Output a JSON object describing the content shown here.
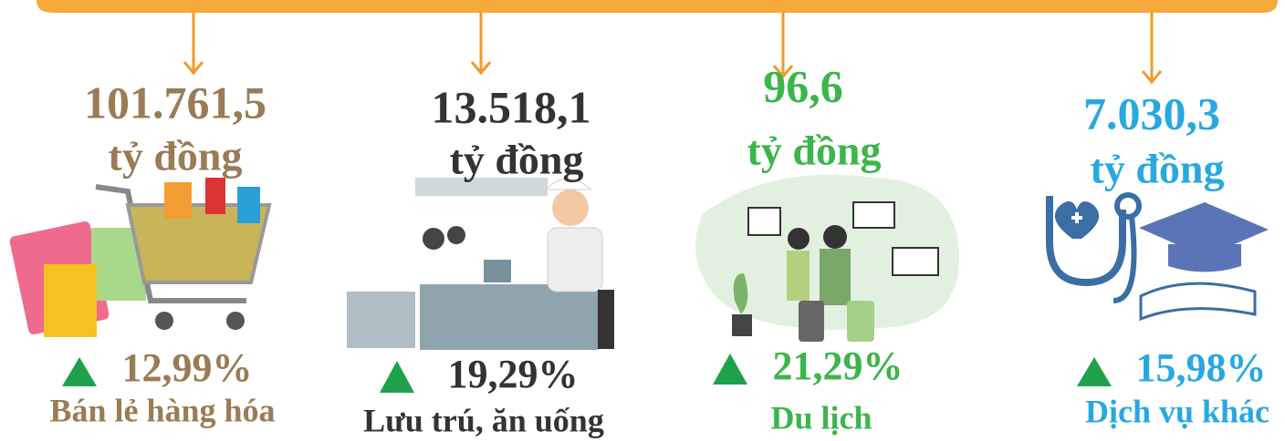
{
  "items": [
    {
      "value": "101.761,5",
      "unit": "tỷ đồng",
      "growth": "12,99%",
      "label": "Bán lẻ hàng hóa"
    },
    {
      "value": "13.518,1",
      "unit": "tỷ đồng",
      "growth": "19,29%",
      "label": "Lưu trú, ăn uống"
    },
    {
      "value": "96,6",
      "unit": "tỷ đồng",
      "growth": "21,29%",
      "label": "Du lịch"
    },
    {
      "value": "7.030,3",
      "unit": "tỷ đồng",
      "growth": "15,98%",
      "label": "Dịch vụ khác"
    }
  ]
}
